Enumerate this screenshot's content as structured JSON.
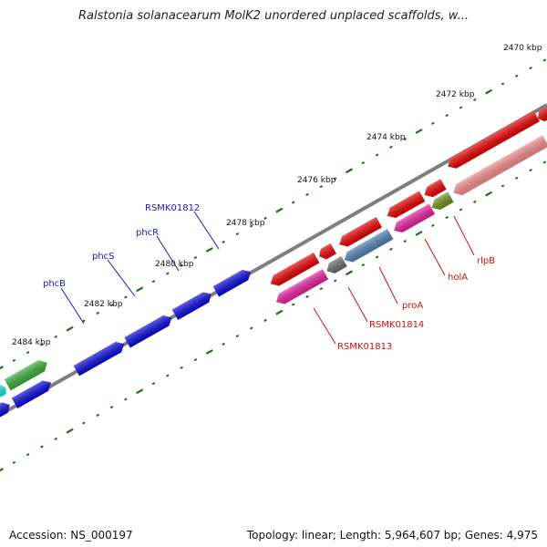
{
  "title": "Ralstonia solanacearum MolK2 unordered unplaced scaffolds, w...",
  "scale_labels": [
    "2470 kbp",
    "2472 kbp",
    "2474 kbp",
    "2476 kbp",
    "2478 kbp",
    "2480 kbp",
    "2482 kbp",
    "2484 kbp"
  ],
  "upper_gene_labels": [
    "RSMK01812",
    "phcR",
    "phcS",
    "phcB"
  ],
  "lower_gene_labels": [
    "rlpB",
    "holA",
    "proA",
    "RSMK01814",
    "RSMK01813"
  ],
  "colors": {
    "upper_labels": "#1a1aa8",
    "lower_labels": "#cc1111",
    "backbone": "#7f7f7f",
    "tick": "#1f6e1f",
    "blue_gene": "#0a0ad6",
    "red_gene": "#e60000",
    "magenta_gene": "#e0209c",
    "steel_gene": "#4f80b0",
    "pink_gene": "#f08a8a",
    "olive_gene": "#6e8e1e",
    "gray_gene": "#6a6a6a",
    "green_gene": "#3aaa3a",
    "cyan_gene": "#18e0e0"
  },
  "footer": {
    "accession": "Accession: NS_000197",
    "topology": "Topology: linear; Length: 5,964,607 bp; Genes: 4,975"
  }
}
